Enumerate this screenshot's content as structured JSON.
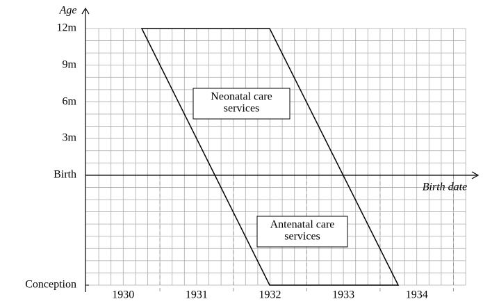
{
  "axes": {
    "y_label": "Age",
    "x_label": "Birth date"
  },
  "y_ticks": [
    "12m",
    "9m",
    "6m",
    "3m",
    "Birth",
    "Conception"
  ],
  "x_ticks": [
    "1930",
    "1931",
    "1932",
    "1933",
    "1934"
  ],
  "boxes": [
    {
      "lines": [
        "Neonatal care",
        "services"
      ]
    },
    {
      "lines": [
        "Antenatal care",
        "services"
      ]
    }
  ]
}
